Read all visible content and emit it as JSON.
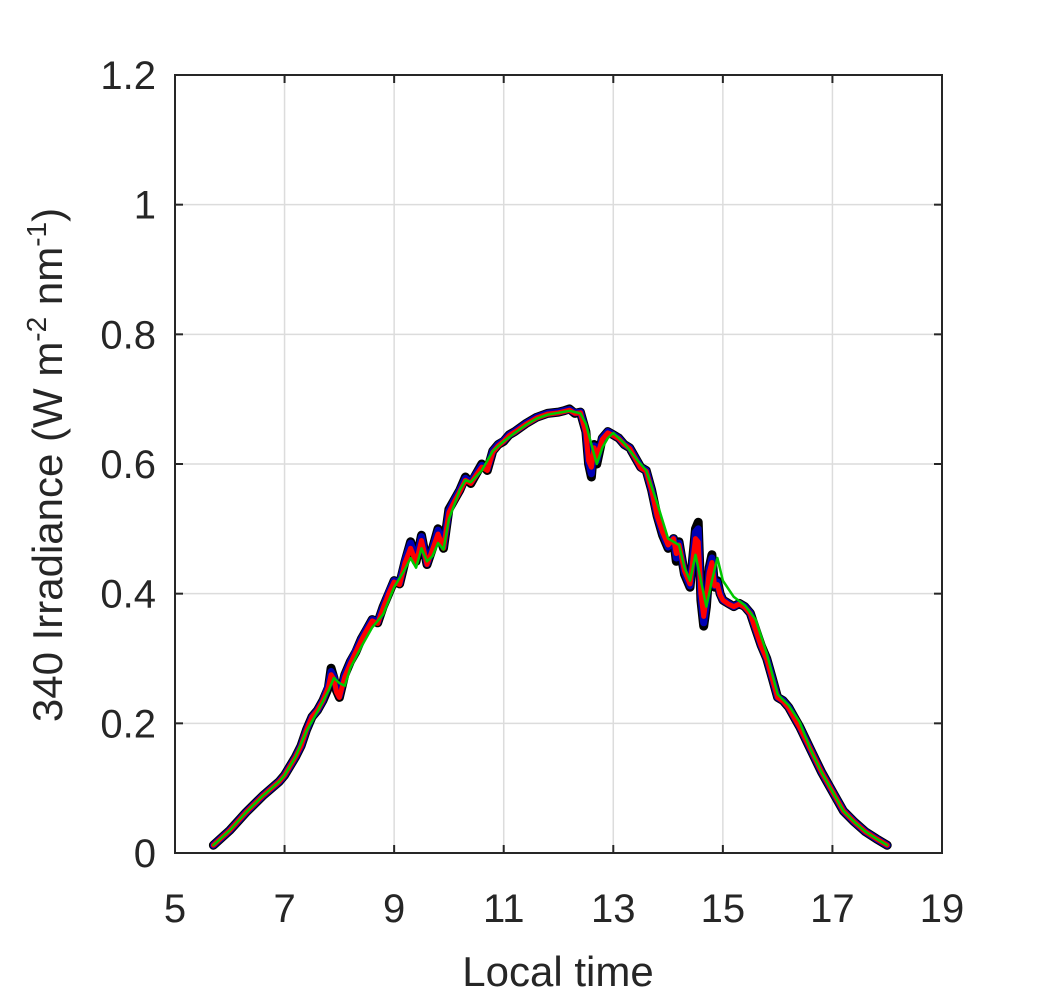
{
  "chart_data": {
    "type": "line",
    "title": "",
    "xlabel": "Local time",
    "ylabel": {
      "prefix": "340 Irradiance (W m",
      "exp1": "-2",
      "middle": " nm",
      "exp2": "-1",
      "suffix": ")"
    },
    "xlim": [
      5,
      19
    ],
    "ylim": [
      0,
      1.2
    ],
    "xticks": [
      5,
      7,
      9,
      11,
      13,
      15,
      17,
      19
    ],
    "yticks": [
      0,
      0.2,
      0.4,
      0.6,
      0.8,
      1,
      1.2
    ],
    "xtick_labels": [
      "5",
      "7",
      "9",
      "11",
      "13",
      "15",
      "17",
      "19"
    ],
    "ytick_labels": [
      "0",
      "0.2",
      "0.4",
      "0.6",
      "0.8",
      "1",
      "1.2"
    ],
    "grid": true,
    "series": [
      {
        "color": "#000000",
        "x": [
          5.7,
          6.0,
          6.3,
          6.6,
          6.9,
          7.0,
          7.2,
          7.3,
          7.4,
          7.5,
          7.6,
          7.7,
          7.8,
          7.85,
          7.9,
          7.95,
          8.0,
          8.1,
          8.2,
          8.3,
          8.4,
          8.5,
          8.6,
          8.7,
          8.8,
          8.9,
          9.0,
          9.1,
          9.2,
          9.3,
          9.4,
          9.5,
          9.6,
          9.7,
          9.8,
          9.9,
          10.0,
          10.1,
          10.2,
          10.3,
          10.4,
          10.5,
          10.6,
          10.7,
          10.8,
          10.9,
          11.0,
          11.1,
          11.2,
          11.4,
          11.6,
          11.8,
          12.0,
          12.1,
          12.2,
          12.3,
          12.4,
          12.5,
          12.55,
          12.6,
          12.65,
          12.7,
          12.8,
          12.9,
          13.0,
          13.1,
          13.2,
          13.3,
          13.4,
          13.5,
          13.6,
          13.7,
          13.8,
          13.9,
          14.0,
          14.1,
          14.15,
          14.2,
          14.3,
          14.4,
          14.5,
          14.55,
          14.6,
          14.65,
          14.7,
          14.75,
          14.8,
          14.85,
          14.9,
          14.95,
          15.0,
          15.1,
          15.2,
          15.3,
          15.4,
          15.5,
          15.6,
          15.7,
          15.8,
          15.9,
          16.0,
          16.1,
          16.2,
          16.3,
          16.4,
          16.6,
          16.8,
          17.0,
          17.2,
          17.4,
          17.6,
          17.8,
          18.0
        ],
        "y": [
          0.012,
          0.035,
          0.063,
          0.088,
          0.11,
          0.12,
          0.148,
          0.165,
          0.19,
          0.21,
          0.22,
          0.235,
          0.255,
          0.285,
          0.27,
          0.25,
          0.24,
          0.275,
          0.295,
          0.31,
          0.33,
          0.345,
          0.36,
          0.355,
          0.38,
          0.4,
          0.42,
          0.415,
          0.45,
          0.48,
          0.45,
          0.49,
          0.445,
          0.47,
          0.5,
          0.47,
          0.53,
          0.545,
          0.56,
          0.58,
          0.57,
          0.585,
          0.6,
          0.59,
          0.62,
          0.63,
          0.635,
          0.645,
          0.65,
          0.662,
          0.672,
          0.678,
          0.68,
          0.682,
          0.685,
          0.678,
          0.68,
          0.65,
          0.6,
          0.58,
          0.63,
          0.6,
          0.64,
          0.65,
          0.645,
          0.64,
          0.63,
          0.625,
          0.61,
          0.595,
          0.59,
          0.56,
          0.52,
          0.49,
          0.47,
          0.485,
          0.45,
          0.48,
          0.43,
          0.41,
          0.5,
          0.51,
          0.39,
          0.35,
          0.38,
          0.44,
          0.46,
          0.41,
          0.42,
          0.4,
          0.39,
          0.385,
          0.38,
          0.385,
          0.38,
          0.37,
          0.345,
          0.32,
          0.3,
          0.27,
          0.24,
          0.235,
          0.225,
          0.21,
          0.195,
          0.16,
          0.125,
          0.095,
          0.065,
          0.048,
          0.033,
          0.022,
          0.012
        ]
      },
      {
        "color": "#0000b4",
        "x": [
          5.7,
          6.0,
          6.3,
          6.6,
          6.9,
          7.0,
          7.2,
          7.3,
          7.4,
          7.5,
          7.6,
          7.7,
          7.8,
          7.85,
          7.9,
          7.95,
          8.0,
          8.1,
          8.2,
          8.3,
          8.4,
          8.5,
          8.6,
          8.7,
          8.8,
          8.9,
          9.0,
          9.1,
          9.2,
          9.3,
          9.4,
          9.5,
          9.6,
          9.7,
          9.8,
          9.9,
          10.0,
          10.1,
          10.2,
          10.3,
          10.4,
          10.5,
          10.6,
          10.7,
          10.8,
          10.9,
          11.0,
          11.1,
          11.2,
          11.4,
          11.6,
          11.8,
          12.0,
          12.1,
          12.2,
          12.3,
          12.4,
          12.5,
          12.55,
          12.6,
          12.65,
          12.7,
          12.8,
          12.9,
          13.0,
          13.1,
          13.2,
          13.3,
          13.4,
          13.5,
          13.6,
          13.7,
          13.8,
          13.9,
          14.0,
          14.1,
          14.15,
          14.2,
          14.3,
          14.4,
          14.5,
          14.55,
          14.6,
          14.65,
          14.7,
          14.75,
          14.8,
          14.85,
          14.9,
          14.95,
          15.0,
          15.1,
          15.2,
          15.3,
          15.4,
          15.5,
          15.6,
          15.7,
          15.8,
          15.9,
          16.0,
          16.1,
          16.2,
          16.3,
          16.4,
          16.6,
          16.8,
          17.0,
          17.2,
          17.4,
          17.6,
          17.8,
          18.0
        ],
        "y": [
          0.012,
          0.035,
          0.063,
          0.088,
          0.11,
          0.12,
          0.148,
          0.165,
          0.19,
          0.21,
          0.22,
          0.235,
          0.258,
          0.28,
          0.272,
          0.252,
          0.242,
          0.275,
          0.295,
          0.312,
          0.33,
          0.346,
          0.36,
          0.356,
          0.38,
          0.402,
          0.42,
          0.416,
          0.452,
          0.478,
          0.452,
          0.488,
          0.446,
          0.47,
          0.498,
          0.472,
          0.528,
          0.545,
          0.56,
          0.578,
          0.572,
          0.585,
          0.598,
          0.592,
          0.62,
          0.63,
          0.636,
          0.645,
          0.65,
          0.662,
          0.672,
          0.678,
          0.68,
          0.682,
          0.684,
          0.679,
          0.68,
          0.65,
          0.602,
          0.585,
          0.628,
          0.605,
          0.64,
          0.65,
          0.645,
          0.64,
          0.63,
          0.625,
          0.61,
          0.595,
          0.59,
          0.56,
          0.52,
          0.492,
          0.472,
          0.485,
          0.455,
          0.478,
          0.432,
          0.412,
          0.495,
          0.5,
          0.395,
          0.355,
          0.385,
          0.438,
          0.455,
          0.412,
          0.418,
          0.4,
          0.39,
          0.385,
          0.38,
          0.385,
          0.38,
          0.37,
          0.345,
          0.32,
          0.3,
          0.27,
          0.24,
          0.235,
          0.225,
          0.21,
          0.195,
          0.16,
          0.125,
          0.095,
          0.065,
          0.048,
          0.033,
          0.022,
          0.012
        ]
      },
      {
        "color": "#ff0000",
        "x": [
          5.7,
          6.0,
          6.3,
          6.6,
          6.9,
          7.0,
          7.2,
          7.3,
          7.4,
          7.5,
          7.6,
          7.7,
          7.8,
          7.85,
          7.9,
          7.95,
          8.0,
          8.1,
          8.2,
          8.3,
          8.4,
          8.5,
          8.6,
          8.7,
          8.8,
          8.9,
          9.0,
          9.1,
          9.2,
          9.3,
          9.4,
          9.5,
          9.6,
          9.7,
          9.8,
          9.9,
          10.0,
          10.1,
          10.2,
          10.3,
          10.4,
          10.5,
          10.6,
          10.7,
          10.8,
          10.9,
          11.0,
          11.1,
          11.2,
          11.4,
          11.6,
          11.8,
          12.0,
          12.1,
          12.2,
          12.3,
          12.4,
          12.5,
          12.55,
          12.6,
          12.65,
          12.7,
          12.8,
          12.9,
          13.0,
          13.1,
          13.2,
          13.3,
          13.4,
          13.5,
          13.6,
          13.7,
          13.8,
          13.9,
          14.0,
          14.1,
          14.15,
          14.2,
          14.3,
          14.4,
          14.5,
          14.55,
          14.6,
          14.65,
          14.7,
          14.75,
          14.8,
          14.85,
          14.9,
          14.95,
          15.0,
          15.1,
          15.2,
          15.3,
          15.4,
          15.5,
          15.6,
          15.7,
          15.8,
          15.9,
          16.0,
          16.1,
          16.2,
          16.3,
          16.4,
          16.6,
          16.8,
          17.0,
          17.2,
          17.4,
          17.6,
          17.8,
          18.0
        ],
        "y": [
          0.012,
          0.035,
          0.063,
          0.088,
          0.11,
          0.12,
          0.148,
          0.165,
          0.19,
          0.21,
          0.22,
          0.235,
          0.256,
          0.275,
          0.268,
          0.248,
          0.24,
          0.272,
          0.292,
          0.31,
          0.328,
          0.344,
          0.358,
          0.354,
          0.378,
          0.4,
          0.418,
          0.414,
          0.448,
          0.47,
          0.448,
          0.482,
          0.445,
          0.468,
          0.492,
          0.47,
          0.525,
          0.542,
          0.558,
          0.575,
          0.57,
          0.583,
          0.595,
          0.59,
          0.618,
          0.628,
          0.635,
          0.644,
          0.649,
          0.661,
          0.671,
          0.677,
          0.679,
          0.681,
          0.683,
          0.678,
          0.679,
          0.648,
          0.605,
          0.595,
          0.625,
          0.61,
          0.638,
          0.648,
          0.644,
          0.639,
          0.63,
          0.624,
          0.609,
          0.594,
          0.589,
          0.56,
          0.52,
          0.495,
          0.475,
          0.485,
          0.462,
          0.475,
          0.435,
          0.415,
          0.485,
          0.48,
          0.4,
          0.365,
          0.395,
          0.432,
          0.448,
          0.412,
          0.414,
          0.398,
          0.39,
          0.384,
          0.38,
          0.384,
          0.379,
          0.369,
          0.344,
          0.319,
          0.299,
          0.269,
          0.24,
          0.234,
          0.224,
          0.209,
          0.194,
          0.16,
          0.125,
          0.095,
          0.065,
          0.048,
          0.033,
          0.022,
          0.012
        ]
      },
      {
        "color": "#00c800",
        "x": [
          5.7,
          6.0,
          6.3,
          6.6,
          6.9,
          7.0,
          7.2,
          7.4,
          7.6,
          7.8,
          7.9,
          8.0,
          8.1,
          8.2,
          8.4,
          8.6,
          8.8,
          9.0,
          9.2,
          9.3,
          9.4,
          9.5,
          9.6,
          9.7,
          9.8,
          9.9,
          10.0,
          10.2,
          10.3,
          10.4,
          10.6,
          10.8,
          11.0,
          11.2,
          11.4,
          11.6,
          11.8,
          12.0,
          12.2,
          12.4,
          12.5,
          12.6,
          12.7,
          12.8,
          12.9,
          13.0,
          13.2,
          13.4,
          13.6,
          13.8,
          14.0,
          14.2,
          14.3,
          14.4,
          14.5,
          14.6,
          14.7,
          14.8,
          14.9,
          15.0,
          15.2,
          15.4,
          15.6,
          15.8,
          16.0,
          16.2,
          16.4,
          16.6,
          16.8,
          17.0,
          17.2,
          17.4,
          17.6,
          17.8,
          18.0
        ],
        "y": [
          0.012,
          0.035,
          0.063,
          0.088,
          0.11,
          0.12,
          0.148,
          0.188,
          0.218,
          0.25,
          0.27,
          0.262,
          0.258,
          0.285,
          0.318,
          0.348,
          0.368,
          0.41,
          0.438,
          0.455,
          0.44,
          0.47,
          0.45,
          0.458,
          0.478,
          0.468,
          0.515,
          0.56,
          0.575,
          0.572,
          0.59,
          0.62,
          0.635,
          0.648,
          0.66,
          0.67,
          0.676,
          0.679,
          0.682,
          0.678,
          0.662,
          0.63,
          0.6,
          0.625,
          0.64,
          0.648,
          0.632,
          0.61,
          0.59,
          0.54,
          0.485,
          0.475,
          0.44,
          0.42,
          0.46,
          0.42,
          0.38,
          0.42,
          0.455,
          0.42,
          0.395,
          0.382,
          0.36,
          0.308,
          0.245,
          0.228,
          0.202,
          0.16,
          0.125,
          0.095,
          0.065,
          0.048,
          0.033,
          0.022,
          0.012
        ]
      }
    ]
  }
}
